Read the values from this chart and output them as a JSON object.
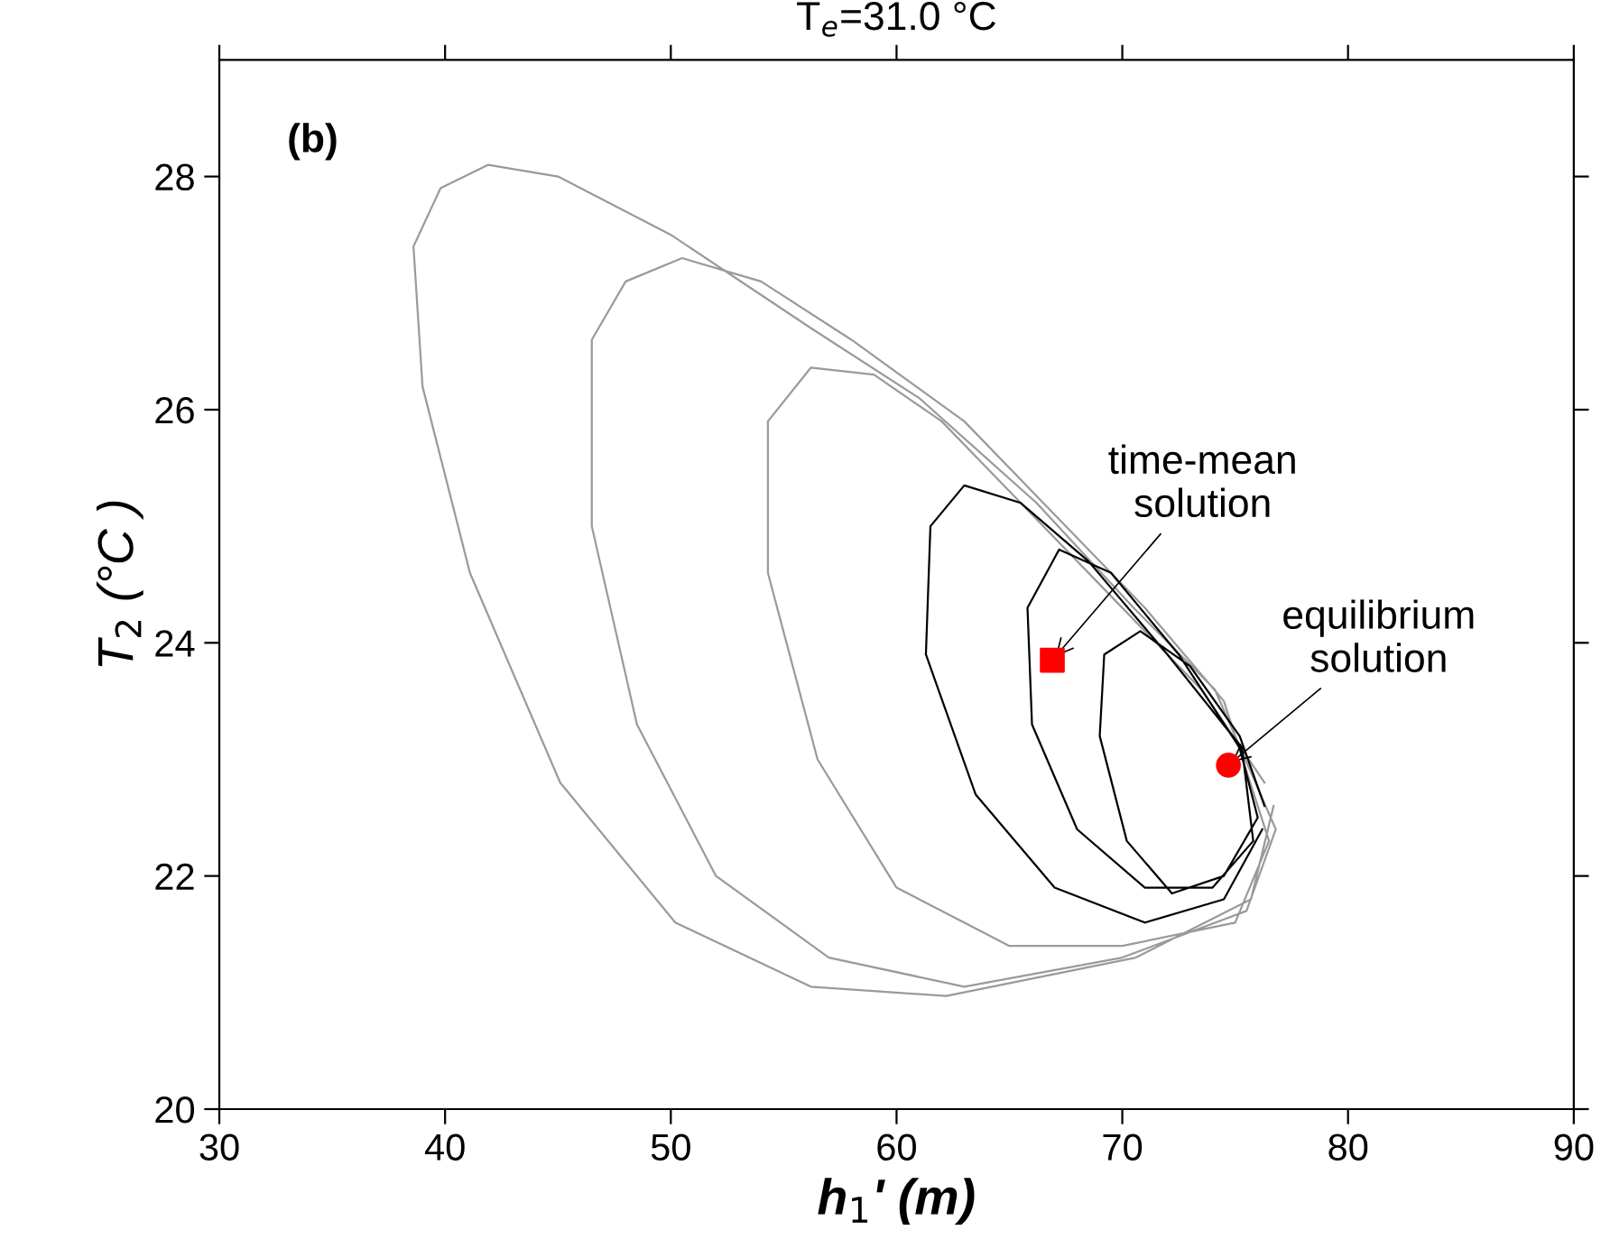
{
  "chart_data": {
    "type": "line",
    "title": "T$_{e}$=31.0 °C",
    "xlabel": "h$_{1}$' (m)",
    "ylabel": "T$_{2}$ (°C )",
    "xlim": [
      30,
      90
    ],
    "xticks": [
      30,
      40,
      50,
      60,
      70,
      80,
      90
    ],
    "ylim": [
      20,
      29
    ],
    "yticks": [
      20,
      22,
      24,
      26,
      28
    ],
    "grid": false,
    "legend": false,
    "annotations": [
      "(b)",
      {
        "text": "time-mean\nsolution",
        "x": 66.9,
        "y": 23.85
      },
      {
        "text": "equilibrium\nsolution",
        "x": 74.7,
        "y": 22.95
      }
    ],
    "series": [
      {
        "color": "#9a9a9a",
        "x": [
          76.7,
          75.7,
          70.6,
          62.2,
          56.2,
          50.2,
          45.1,
          41.1,
          39.0,
          38.6,
          39.8,
          41.9,
          45,
          50,
          56.2,
          61,
          66.2,
          70.5,
          74.1,
          76.8,
          75.5,
          70,
          63,
          57,
          52,
          48.5,
          46.5,
          46.5,
          48,
          50.5,
          54,
          58,
          63,
          67,
          71,
          74.5,
          76.5,
          75,
          70,
          65,
          60,
          56.5,
          54.3,
          54.3,
          56.2,
          59,
          62,
          65.5,
          69.5,
          73.5,
          76.3
        ],
        "values": [
          22.6,
          21.8,
          21.3,
          20.97,
          21.05,
          21.6,
          22.8,
          24.6,
          26.2,
          27.4,
          27.9,
          28.1,
          28.0,
          27.5,
          26.7,
          26.1,
          25.2,
          24.3,
          23.6,
          22.4,
          21.7,
          21.3,
          21.05,
          21.3,
          22.0,
          23.3,
          25.0,
          26.6,
          27.1,
          27.3,
          27.1,
          26.6,
          25.9,
          25.1,
          24.3,
          23.5,
          22.3,
          21.6,
          21.4,
          21.4,
          21.9,
          23.0,
          24.6,
          25.9,
          26.36,
          26.3,
          25.9,
          25.2,
          24.4,
          23.6,
          22.8
        ]
      },
      {
        "color": "#000000",
        "x": [
          76.2,
          74.5,
          71,
          67,
          63.5,
          61.3,
          61.5,
          63,
          65.5,
          68.5,
          72,
          75.3,
          75.8,
          74,
          71,
          68,
          66,
          65.8,
          67.2,
          69.5,
          72.5,
          75.2,
          76,
          74.5,
          72.2,
          70.2,
          69.0,
          69.2,
          70.8,
          73,
          75.2,
          76.3
        ],
        "values": [
          22.4,
          21.8,
          21.6,
          21.9,
          22.7,
          23.9,
          25.0,
          25.35,
          25.2,
          24.7,
          23.9,
          23.1,
          22.3,
          21.9,
          21.9,
          22.4,
          23.3,
          24.3,
          24.8,
          24.6,
          23.9,
          23.1,
          22.5,
          22.0,
          21.85,
          22.3,
          23.2,
          23.9,
          24.1,
          23.8,
          23.2,
          22.6
        ]
      },
      {
        "type": "scatter",
        "marker": "square",
        "color": "#ff0000",
        "x": [
          66.9
        ],
        "values": [
          23.85
        ]
      },
      {
        "type": "scatter",
        "marker": "circle",
        "color": "#ff0000",
        "x": [
          74.7
        ],
        "values": [
          22.95
        ]
      }
    ]
  }
}
